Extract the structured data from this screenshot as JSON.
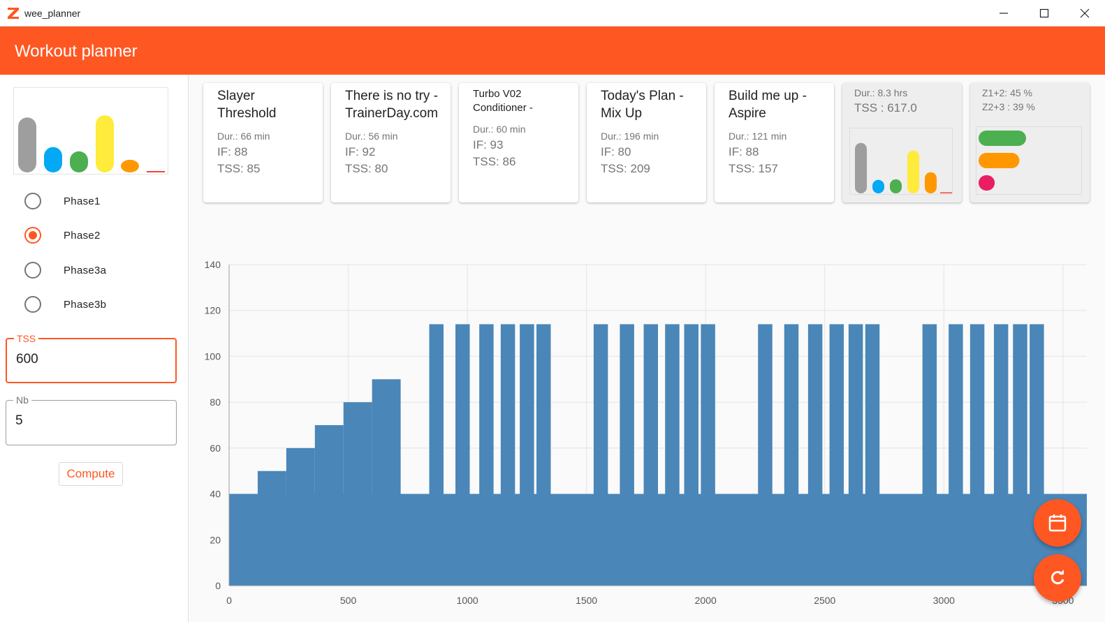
{
  "window": {
    "title": "wee_planner"
  },
  "header": {
    "title": "Workout planner"
  },
  "sidebar": {
    "phases": [
      {
        "label": "Phase1",
        "selected": false
      },
      {
        "label": "Phase2",
        "selected": true
      },
      {
        "label": "Phase3a",
        "selected": false
      },
      {
        "label": "Phase3b",
        "selected": false
      }
    ],
    "tss_field": {
      "label": "TSS",
      "value": "600"
    },
    "nb_field": {
      "label": "Nb",
      "value": "5"
    },
    "compute_label": "Compute"
  },
  "cards": [
    {
      "title": "Slayer Threshold",
      "dur": "Dur.: 66 min",
      "if": "IF:  88",
      "tss": "TSS:  85"
    },
    {
      "title": "There is no try - TrainerDay.com",
      "dur": "Dur.: 56 min",
      "if": "IF:  92",
      "tss": "TSS:  80"
    },
    {
      "title": "Turbo V02 Conditioner -",
      "dur": "Dur.: 60 min",
      "if": "IF:  93",
      "tss": "TSS:  86"
    },
    {
      "title": "Today's Plan - Mix Up",
      "dur": "Dur.: 196 min",
      "if": "IF:  80",
      "tss": "TSS:  209"
    },
    {
      "title": "Build me up - Aspire",
      "dur": "Dur.: 121 min",
      "if": "IF:  88",
      "tss": "TSS:  157"
    }
  ],
  "summary": {
    "duration": "Dur.: 8.3 hrs",
    "tss": "TSS :  617.0"
  },
  "zones": {
    "z1z2": "Z1+2: 45 %",
    "z2z3": "Z2+3 : 39 %"
  },
  "colors": {
    "accent": "#ff5722",
    "bar": "#4a86b8",
    "zone_grey": "#9e9e9e",
    "zone_blue": "#03a9f4",
    "zone_green": "#4caf50",
    "zone_yellow": "#ffeb3b",
    "zone_orange": "#ff9800",
    "zone_red": "#f44336",
    "zone_pink": "#e91e63"
  },
  "icons": {
    "calendar_fab": "calendar-icon",
    "refresh_fab": "refresh-icon"
  },
  "zone_distribution": {
    "sidebar_levels": [
      0.78,
      0.36,
      0.3,
      0.81,
      0.18,
      0.01
    ],
    "summary_levels": [
      0.86,
      0.23,
      0.24,
      0.73,
      0.36,
      0.01
    ],
    "pill_levels": [
      1.0,
      0.86,
      0.34
    ]
  },
  "chart_data": {
    "type": "bar",
    "title": "",
    "xlabel": "",
    "ylabel": "",
    "xlim": [
      0,
      3600
    ],
    "ylim": [
      0,
      140
    ],
    "xticks": [
      0,
      500,
      1000,
      1500,
      2000,
      2500,
      3000,
      3500
    ],
    "yticks": [
      0,
      20,
      40,
      60,
      80,
      100,
      120,
      140
    ],
    "baseline": 40,
    "steps": [
      {
        "x0": 0,
        "x1": 120,
        "y": 40
      },
      {
        "x0": 120,
        "x1": 240,
        "y": 50
      },
      {
        "x0": 240,
        "x1": 360,
        "y": 60
      },
      {
        "x0": 360,
        "x1": 480,
        "y": 70
      },
      {
        "x0": 480,
        "x1": 600,
        "y": 80
      },
      {
        "x0": 600,
        "x1": 720,
        "y": 90
      }
    ],
    "intervals": [
      [
        840,
        900
      ],
      [
        950,
        1010
      ],
      [
        1050,
        1110
      ],
      [
        1140,
        1200
      ],
      [
        1220,
        1280
      ],
      [
        1290,
        1350
      ],
      [
        1530,
        1590
      ],
      [
        1640,
        1700
      ],
      [
        1740,
        1800
      ],
      [
        1830,
        1890
      ],
      [
        1910,
        1970
      ],
      [
        1980,
        2040
      ],
      [
        2220,
        2280
      ],
      [
        2330,
        2390
      ],
      [
        2430,
        2490
      ],
      [
        2520,
        2580
      ],
      [
        2600,
        2660
      ],
      [
        2670,
        2730
      ],
      [
        2910,
        2970
      ],
      [
        3020,
        3080
      ],
      [
        3110,
        3170
      ],
      [
        3210,
        3270
      ],
      [
        3290,
        3350
      ],
      [
        3360,
        3420
      ]
    ],
    "interval_value": 114,
    "end_x": 3600
  }
}
